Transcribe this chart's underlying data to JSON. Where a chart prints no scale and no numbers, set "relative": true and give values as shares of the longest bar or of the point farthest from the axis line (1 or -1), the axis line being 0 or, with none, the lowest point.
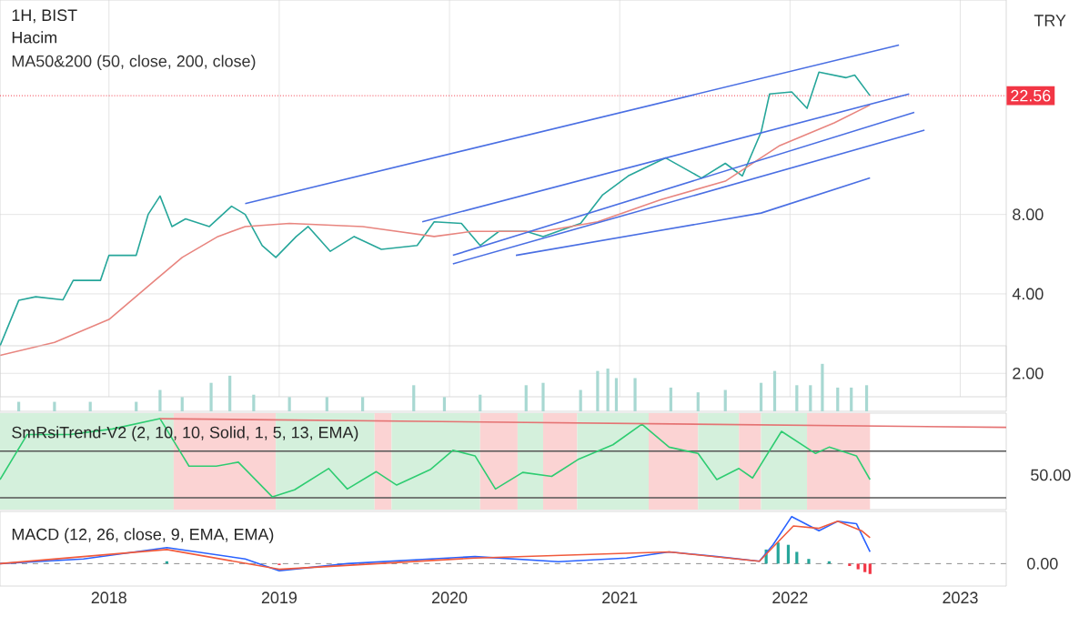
{
  "chart_data": [
    {
      "type": "line",
      "title": "1H, BIST",
      "ylabel": "TRY",
      "log": "y",
      "grid": true,
      "tick_labels": "y",
      "xlim": [
        2017.36,
        2023.27
      ],
      "xticks": [
        2018,
        2019,
        2020,
        2021,
        2022,
        2023
      ],
      "ylim": [
        1.63,
        52
      ],
      "yticks": [
        {
          "value": 2,
          "label": "2.00"
        },
        {
          "value": 4,
          "label": "4.00"
        },
        {
          "value": 8,
          "label": "8.00"
        }
      ],
      "annotations": [
        "MA50&200 (50, close, 200, close)"
      ],
      "ref_lines": [
        {
          "axis": "y",
          "value": 22.56,
          "label": "22.56",
          "color": "#f23645",
          "line_style": "dotted"
        }
      ],
      "series": [
        {
          "color": "#26a69a",
          "x": [
            2017.36,
            2017.47,
            2017.57,
            2017.73,
            2017.79,
            2017.95,
            2018.0,
            2018.16,
            2018.23,
            2018.3,
            2018.37,
            2018.45,
            2018.59,
            2018.72,
            2018.8,
            2018.9,
            2018.98,
            2019.1,
            2019.17,
            2019.3,
            2019.44,
            2019.6,
            2019.81,
            2019.91,
            2020.07,
            2020.18,
            2020.29,
            2020.45,
            2020.55,
            2020.77,
            2020.9,
            2021.05,
            2021.27,
            2021.48,
            2021.62,
            2021.72,
            2021.83,
            2021.88,
            2022.01,
            2022.1,
            2022.17,
            2022.33,
            2022.38,
            2022.47
          ],
          "values": [
            2.54,
            3.78,
            3.9,
            3.8,
            4.5,
            4.5,
            5.6,
            5.6,
            8,
            9.4,
            7.2,
            7.7,
            7.2,
            8.6,
            8,
            6.1,
            5.5,
            6.6,
            7.2,
            5.8,
            6.6,
            5.9,
            6.1,
            7.5,
            7.4,
            6.1,
            6.9,
            6.9,
            6.6,
            7.4,
            9.5,
            11.2,
            13.1,
            11.0,
            12.5,
            11.2,
            16.4,
            22.9,
            23.3,
            20.2,
            27.7,
            26.4,
            27,
            22.56
          ]
        },
        {
          "color": "#e8857f",
          "x": [
            2017.36,
            2017.68,
            2018.0,
            2018.27,
            2018.43,
            2018.64,
            2018.8,
            2019.06,
            2019.49,
            2019.91,
            2020.13,
            2020.55,
            2020.87,
            2021.24,
            2021.62,
            2021.94,
            2022.26,
            2022.47
          ],
          "values": [
            2.34,
            2.62,
            3.2,
            4.5,
            5.5,
            6.6,
            7.2,
            7.4,
            7.2,
            6.6,
            6.9,
            6.9,
            7.5,
            9.1,
            10.7,
            14.6,
            17.8,
            20.8
          ]
        },
        {
          "color": "#4a6fe3",
          "x": [
            2018.8,
            2022.64
          ],
          "values": [
            8.8,
            35.1
          ]
        },
        {
          "color": "#4a6fe3",
          "x": [
            2019.84,
            2022.7
          ],
          "values": [
            7.5,
            22.9
          ]
        },
        {
          "color": "#4a6fe3",
          "x": [
            2020.02,
            2022.73
          ],
          "values": [
            5.6,
            19.5
          ]
        },
        {
          "color": "#4a6fe3",
          "x": [
            2020.02,
            2022.79
          ],
          "values": [
            5.2,
            16.7
          ]
        },
        {
          "color": "#4a6fe3",
          "x": [
            2020.39,
            2021.83,
            2022.47
          ],
          "values": [
            5.6,
            8.1,
            11.0
          ]
        }
      ]
    },
    {
      "type": "bar",
      "title": "Hacim",
      "relative": true,
      "tick_labels": false,
      "xlim": [
        2017.36,
        2023.27
      ],
      "xticks": [
        2018,
        2019,
        2020,
        2021,
        2022,
        2023
      ],
      "color": "#a8d8d2",
      "x": [
        2017.47,
        2017.68,
        2017.89,
        2018.16,
        2018.3,
        2018.43,
        2018.6,
        2018.71,
        2018.85,
        2019.06,
        2019.28,
        2019.49,
        2019.79,
        2019.97,
        2020.18,
        2020.45,
        2020.55,
        2020.77,
        2020.87,
        2020.93,
        2020.98,
        2021.09,
        2021.3,
        2021.46,
        2021.62,
        2021.83,
        2021.91,
        2022.04,
        2022.12,
        2022.19,
        2022.28,
        2022.36,
        2022.45
      ],
      "values": [
        0.2,
        0.2,
        0.2,
        0.2,
        0.45,
        0.3,
        0.6,
        0.75,
        0.35,
        0.3,
        0.3,
        0.3,
        0.55,
        0.3,
        0.35,
        0.55,
        0.6,
        0.45,
        0.85,
        0.9,
        0.7,
        0.7,
        0.5,
        0.4,
        0.45,
        0.6,
        0.85,
        0.55,
        0.55,
        1.0,
        0.5,
        0.5,
        0.55
      ]
    },
    {
      "type": "line",
      "title": "SmRsiTrend-V2 (2, 10, 10, Solid, 1, 5, 13, EMA)",
      "relative": true,
      "tick_labels": false,
      "xlim": [
        2017.36,
        2023.27
      ],
      "xticks": [
        2018,
        2019,
        2020,
        2021,
        2022,
        2023
      ],
      "annotations": [
        "50.00"
      ],
      "bands": [
        {
          "axis": "x",
          "from": 2017.36,
          "to": 2018.38,
          "color": "#d4f0dc"
        },
        {
          "axis": "x",
          "from": 2018.38,
          "to": 2018.98,
          "color": "#fbd3d3"
        },
        {
          "axis": "x",
          "from": 2018.98,
          "to": 2019.56,
          "color": "#d4f0dc"
        },
        {
          "axis": "x",
          "from": 2019.56,
          "to": 2019.66,
          "color": "#fbd3d3"
        },
        {
          "axis": "x",
          "from": 2019.66,
          "to": 2020.18,
          "color": "#d4f0dc"
        },
        {
          "axis": "x",
          "from": 2020.18,
          "to": 2020.4,
          "color": "#fbd3d3"
        },
        {
          "axis": "x",
          "from": 2020.4,
          "to": 2020.55,
          "color": "#d4f0dc"
        },
        {
          "axis": "x",
          "from": 2020.55,
          "to": 2020.75,
          "color": "#fbd3d3"
        },
        {
          "axis": "x",
          "from": 2020.75,
          "to": 2021.17,
          "color": "#d4f0dc"
        },
        {
          "axis": "x",
          "from": 2021.17,
          "to": 2021.46,
          "color": "#fbd3d3"
        },
        {
          "axis": "x",
          "from": 2021.46,
          "to": 2021.7,
          "color": "#d4f0dc"
        },
        {
          "axis": "x",
          "from": 2021.7,
          "to": 2021.83,
          "color": "#fbd3d3"
        },
        {
          "axis": "x",
          "from": 2021.83,
          "to": 2022.1,
          "color": "#d4f0dc"
        },
        {
          "axis": "x",
          "from": 2022.1,
          "to": 2022.47,
          "color": "#fbd3d3"
        }
      ],
      "series": [
        {
          "color": "#555555",
          "x": [
            2017.36,
            2023.27
          ],
          "values": [
            0,
            0
          ]
        },
        {
          "color": "#555555",
          "x": [
            2017.36,
            2023.27
          ],
          "values": [
            0.59,
            0.59
          ]
        },
        {
          "color": "#2ecc71",
          "x": [
            2017.36,
            2017.52,
            2017.77,
            2018.02,
            2018.3,
            2018.47,
            2018.63,
            2018.76,
            2018.96,
            2019.09,
            2019.29,
            2019.4,
            2019.57,
            2019.69,
            2019.89,
            2020.02,
            2020.15,
            2020.27,
            2020.43,
            2020.6,
            2020.76,
            2020.96,
            2021.13,
            2021.29,
            2021.46,
            2021.57,
            2021.7,
            2021.78,
            2021.95,
            2022.15,
            2022.23,
            2022.39,
            2022.47
          ],
          "values": [
            0.23,
            0.8,
            0.8,
            0.87,
            1.0,
            0.4,
            0.4,
            0.45,
            0.01,
            0.1,
            0.37,
            0.11,
            0.33,
            0.16,
            0.36,
            0.6,
            0.53,
            0.11,
            0.32,
            0.27,
            0.49,
            0.67,
            0.93,
            0.64,
            0.56,
            0.23,
            0.37,
            0.25,
            0.84,
            0.56,
            0.64,
            0.53,
            0.23
          ]
        },
        {
          "color": "#e57373",
          "x": [
            2018.3,
            2023.27
          ],
          "values": [
            1.0,
            0.89
          ]
        }
      ]
    },
    {
      "type": "line",
      "title": "MACD (12, 26, close, 9, EMA, EMA)",
      "relative": true,
      "tick_labels": "x",
      "xlim": [
        2017.36,
        2023.27
      ],
      "xticks": [
        2018,
        2019,
        2020,
        2021,
        2022,
        2023
      ],
      "ref_lines": [
        {
          "axis": "y",
          "value": 0,
          "label": "0.00",
          "line_style": "dashed"
        }
      ],
      "series": [
        {
          "type": "bar",
          "x": [
            2018.34,
            2019.0,
            2021.86,
            2021.93,
            2021.99,
            2022.04,
            2022.11,
            2022.23,
            2022.35,
            2022.4,
            2022.44,
            2022.47
          ],
          "values": [
            0.05,
            -0.03,
            0.3,
            0.45,
            0.4,
            0.25,
            0.1,
            0.05,
            -0.05,
            -0.12,
            -0.18,
            -0.22
          ],
          "colors": [
            "#26a69a",
            "#f23645",
            "#26a69a",
            "#26a69a",
            "#26a69a",
            "#26a69a",
            "#26a69a",
            "#26a69a",
            "#f23645",
            "#f23645",
            "#f23645",
            "#f23645"
          ]
        },
        {
          "color": "#2962ff",
          "x": [
            2017.36,
            2017.85,
            2018.34,
            2018.8,
            2019.0,
            2019.4,
            2020.15,
            2020.64,
            2021.04,
            2021.29,
            2021.57,
            2021.82,
            2021.9,
            2022.01,
            2022.17,
            2022.28,
            2022.39,
            2022.47
          ],
          "values": [
            0,
            0.1,
            0.34,
            0.1,
            -0.15,
            0,
            0.15,
            0.04,
            0.12,
            0.25,
            0.15,
            0.05,
            0.4,
            1.0,
            0.7,
            0.9,
            0.85,
            0.25
          ]
        },
        {
          "color": "#f05a3c",
          "x": [
            2017.36,
            2018.34,
            2019.0,
            2020.15,
            2021.29,
            2021.82,
            2022.02,
            2022.17,
            2022.28,
            2022.42,
            2022.47
          ],
          "values": [
            0,
            0.3,
            -0.12,
            0.12,
            0.25,
            0.05,
            0.8,
            0.75,
            0.9,
            0.7,
            0.55
          ]
        }
      ]
    }
  ]
}
